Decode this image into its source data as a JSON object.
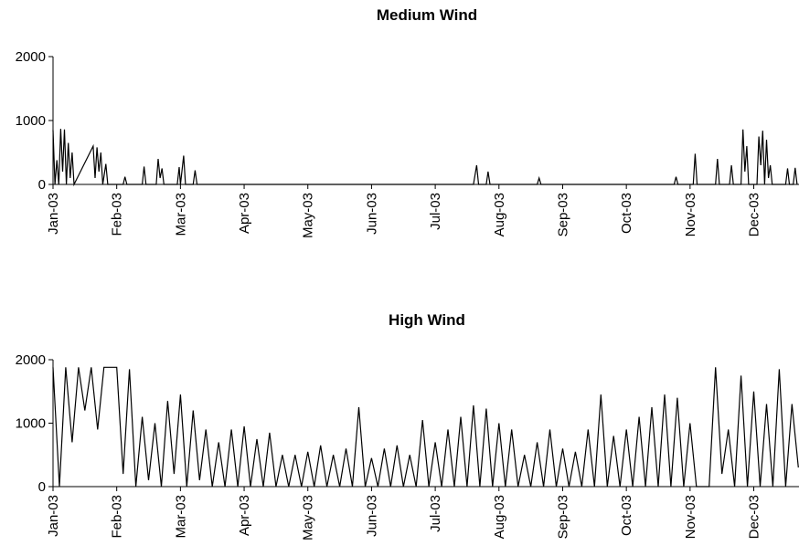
{
  "chart_data": [
    {
      "type": "line",
      "title": "Medium Wind",
      "color": "#000000",
      "xlim": [
        0,
        11.71
      ],
      "ylim": [
        0,
        2000
      ],
      "yticks": [
        0,
        1000,
        2000
      ],
      "xticks": [
        {
          "value": 0,
          "label": "Jan-03"
        },
        {
          "value": 1,
          "label": "Feb-03"
        },
        {
          "value": 2,
          "label": "Mar-03"
        },
        {
          "value": 3,
          "label": "Apr-03"
        },
        {
          "value": 4,
          "label": "May-03"
        },
        {
          "value": 5,
          "label": "Jun-03"
        },
        {
          "value": 6,
          "label": "Jul-03"
        },
        {
          "value": 7,
          "label": "Aug-03"
        },
        {
          "value": 8,
          "label": "Sep-03"
        },
        {
          "value": 9,
          "label": "Oct-03"
        },
        {
          "value": 10,
          "label": "Nov-03"
        },
        {
          "value": 11,
          "label": "Dec-03"
        }
      ],
      "x": [
        0.0,
        0.03,
        0.06,
        0.09,
        0.12,
        0.15,
        0.18,
        0.21,
        0.24,
        0.27,
        0.3,
        0.33,
        0.63,
        0.66,
        0.69,
        0.72,
        0.75,
        0.78,
        0.83,
        0.86,
        1.1,
        1.13,
        1.16,
        1.4,
        1.43,
        1.46,
        1.62,
        1.65,
        1.68,
        1.71,
        1.74,
        1.95,
        1.98,
        2.0,
        2.05,
        2.08,
        2.2,
        2.23,
        2.26,
        6.6,
        6.65,
        6.68,
        6.8,
        6.83,
        6.86,
        7.6,
        7.63,
        7.66,
        9.75,
        9.78,
        9.81,
        10.05,
        10.08,
        10.11,
        10.4,
        10.43,
        10.46,
        10.62,
        10.65,
        10.68,
        10.8,
        10.83,
        10.86,
        10.89,
        10.92,
        11.05,
        11.08,
        11.11,
        11.14,
        11.17,
        11.2,
        11.23,
        11.26,
        11.29,
        11.5,
        11.53,
        11.56,
        11.62,
        11.65,
        11.68
      ],
      "values": [
        850,
        0,
        380,
        0,
        870,
        200,
        860,
        0,
        650,
        100,
        500,
        0,
        600,
        100,
        580,
        200,
        500,
        0,
        320,
        0,
        0,
        120,
        0,
        0,
        280,
        0,
        0,
        400,
        100,
        250,
        0,
        0,
        270,
        0,
        450,
        0,
        0,
        220,
        0,
        0,
        300,
        0,
        0,
        200,
        0,
        0,
        100,
        0,
        0,
        120,
        0,
        0,
        480,
        0,
        0,
        400,
        0,
        0,
        300,
        0,
        0,
        860,
        200,
        600,
        0,
        0,
        750,
        300,
        840,
        0,
        700,
        100,
        300,
        0,
        0,
        250,
        0,
        0,
        260,
        0
      ]
    },
    {
      "type": "line",
      "title": "High Wind",
      "color": "#000000",
      "xlim": [
        0,
        11.71
      ],
      "ylim": [
        0,
        2000
      ],
      "yticks": [
        0,
        1000,
        2000
      ],
      "xticks": [
        {
          "value": 0,
          "label": "Jan-03"
        },
        {
          "value": 1,
          "label": "Feb-03"
        },
        {
          "value": 2,
          "label": "Mar-03"
        },
        {
          "value": 3,
          "label": "Apr-03"
        },
        {
          "value": 4,
          "label": "May-03"
        },
        {
          "value": 5,
          "label": "Jun-03"
        },
        {
          "value": 6,
          "label": "Jul-03"
        },
        {
          "value": 7,
          "label": "Aug-03"
        },
        {
          "value": 8,
          "label": "Sep-03"
        },
        {
          "value": 9,
          "label": "Oct-03"
        },
        {
          "value": 10,
          "label": "Nov-03"
        },
        {
          "value": 11,
          "label": "Dec-03"
        }
      ],
      "x": [
        0.0,
        0.1,
        0.2,
        0.3,
        0.4,
        0.5,
        0.6,
        0.7,
        0.8,
        0.9,
        1.0,
        1.1,
        1.2,
        1.3,
        1.4,
        1.5,
        1.6,
        1.7,
        1.8,
        1.9,
        2.0,
        2.1,
        2.2,
        2.3,
        2.4,
        2.5,
        2.6,
        2.7,
        2.8,
        2.9,
        3.0,
        3.1,
        3.2,
        3.3,
        3.4,
        3.5,
        3.6,
        3.7,
        3.8,
        3.9,
        4.0,
        4.1,
        4.2,
        4.3,
        4.4,
        4.5,
        4.6,
        4.7,
        4.8,
        4.9,
        5.0,
        5.1,
        5.2,
        5.3,
        5.4,
        5.5,
        5.6,
        5.7,
        5.8,
        5.9,
        6.0,
        6.1,
        6.2,
        6.3,
        6.4,
        6.5,
        6.6,
        6.7,
        6.8,
        6.9,
        7.0,
        7.1,
        7.2,
        7.3,
        7.4,
        7.5,
        7.6,
        7.7,
        7.8,
        7.9,
        8.0,
        8.1,
        8.2,
        8.3,
        8.4,
        8.5,
        8.6,
        8.7,
        8.8,
        8.9,
        9.0,
        9.1,
        9.2,
        9.3,
        9.4,
        9.5,
        9.6,
        9.7,
        9.8,
        9.9,
        10.0,
        10.1,
        10.2,
        10.3,
        10.4,
        10.5,
        10.6,
        10.7,
        10.8,
        10.9,
        11.0,
        11.1,
        11.2,
        11.3,
        11.4,
        11.5,
        11.6,
        11.7
      ],
      "values": [
        1880,
        0,
        1880,
        700,
        1880,
        1200,
        1880,
        900,
        1880,
        1880,
        1880,
        200,
        1850,
        0,
        1100,
        100,
        1000,
        0,
        1350,
        200,
        1450,
        0,
        1200,
        100,
        900,
        0,
        700,
        0,
        900,
        0,
        950,
        0,
        750,
        0,
        850,
        0,
        500,
        0,
        500,
        0,
        550,
        0,
        650,
        0,
        500,
        0,
        600,
        0,
        1250,
        0,
        450,
        0,
        600,
        0,
        650,
        0,
        500,
        0,
        1050,
        0,
        700,
        0,
        900,
        0,
        1100,
        0,
        1280,
        0,
        1230,
        0,
        1000,
        0,
        900,
        0,
        500,
        0,
        700,
        0,
        900,
        0,
        600,
        0,
        550,
        0,
        900,
        0,
        1450,
        0,
        800,
        0,
        900,
        0,
        1100,
        0,
        1250,
        0,
        1450,
        0,
        1400,
        0,
        1000,
        0,
        0,
        0,
        1880,
        200,
        900,
        0,
        1750,
        0,
        1500,
        0,
        1300,
        0,
        1850,
        0,
        1300,
        300
      ]
    }
  ]
}
